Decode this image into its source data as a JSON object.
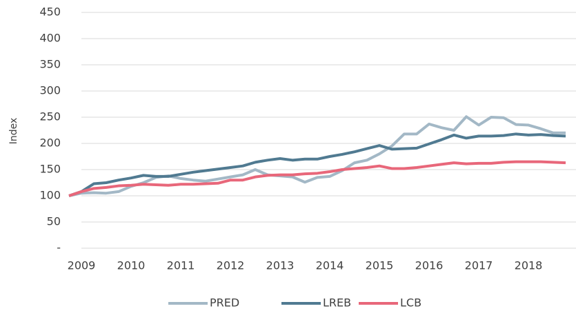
{
  "chart_data": {
    "type": "line",
    "y_label": "Index",
    "categories": [
      null,
      "2009",
      null,
      null,
      null,
      "2010",
      null,
      null,
      null,
      "2011",
      null,
      null,
      null,
      "2012",
      null,
      null,
      null,
      "2013",
      null,
      null,
      null,
      "2014",
      null,
      null,
      null,
      "2015",
      null,
      null,
      null,
      "2016",
      null,
      null,
      null,
      "2017",
      null,
      null,
      null,
      "2018",
      null,
      null,
      null
    ],
    "series": [
      {
        "name": "PRED",
        "color": "#a3b8c6",
        "values": [
          100,
          105,
          106,
          105,
          108,
          118,
          125,
          135,
          138,
          133,
          130,
          128,
          132,
          136,
          140,
          150,
          140,
          138,
          136,
          126,
          135,
          137,
          148,
          163,
          168,
          180,
          195,
          218,
          218,
          237,
          230,
          225,
          251,
          235,
          250,
          249,
          236,
          235,
          228,
          220,
          220
        ]
      },
      {
        "name": "LREB",
        "color": "#507a91",
        "values": [
          100,
          108,
          123,
          125,
          130,
          134,
          139,
          137,
          137,
          141,
          145,
          148,
          151,
          154,
          157,
          164,
          168,
          171,
          168,
          170,
          170,
          175,
          179,
          184,
          190,
          196,
          189,
          190,
          191,
          199,
          207,
          216,
          210,
          214,
          214,
          215,
          218,
          216,
          217,
          215,
          214
        ]
      },
      {
        "name": "LCB",
        "color": "#e8677a",
        "values": [
          100,
          108,
          114,
          116,
          119,
          120,
          122,
          121,
          120,
          122,
          122,
          123,
          124,
          130,
          130,
          136,
          139,
          140,
          140,
          142,
          143,
          146,
          150,
          152,
          154,
          157,
          152,
          152,
          154,
          157,
          160,
          163,
          161,
          162,
          162,
          164,
          165,
          165,
          165,
          164,
          163
        ]
      }
    ],
    "ylim": [
      0,
      450
    ],
    "yticks": [
      {
        "value": 0,
        "label": "-"
      },
      50,
      100,
      150,
      200,
      250,
      300,
      350,
      400,
      450
    ],
    "grid": true,
    "legend": "bottom"
  }
}
